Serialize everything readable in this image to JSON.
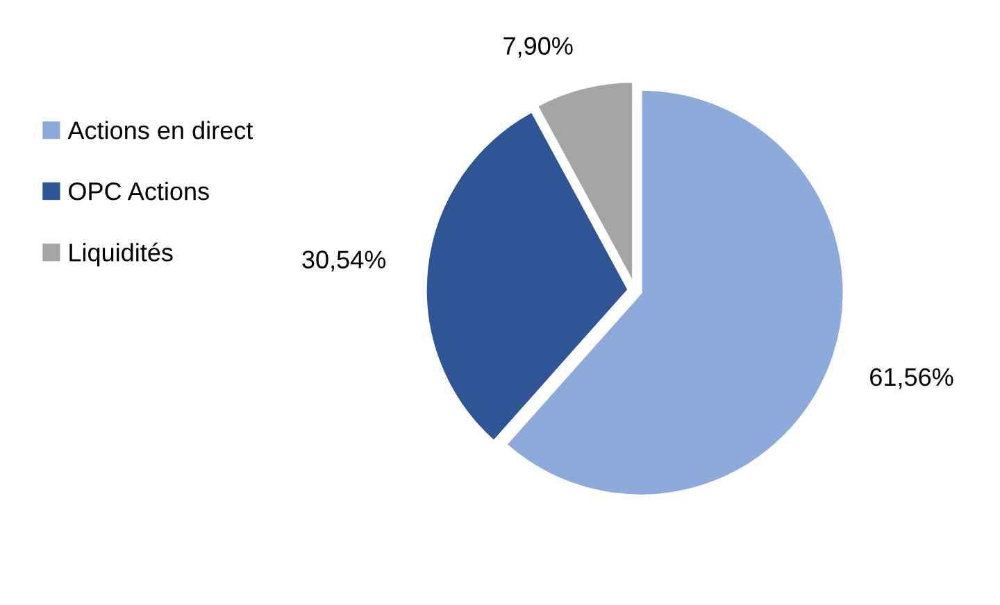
{
  "chart_data": {
    "type": "pie",
    "categories": [
      "Actions en direct",
      "OPC Actions",
      "Liquidités"
    ],
    "values": [
      61.56,
      30.54,
      7.9
    ],
    "value_labels": [
      "61,56%",
      "30,54%",
      "7,90%"
    ],
    "colors": [
      "#8eaadb",
      "#2f5597",
      "#a5a5a5"
    ],
    "legend": "left"
  }
}
